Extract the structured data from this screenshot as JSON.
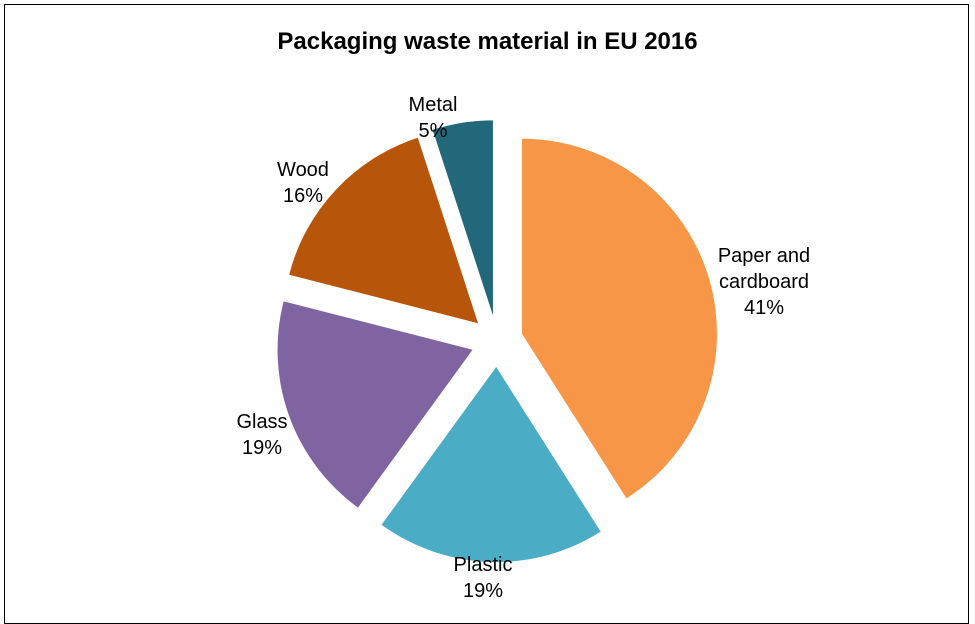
{
  "chart_data": {
    "type": "pie",
    "title": "Packaging waste material in EU 2016",
    "slices": [
      {
        "label": [
          "Paper and",
          "cardboard"
        ],
        "percent_label": "41%",
        "value": 41,
        "color": "#F79646"
      },
      {
        "label": [
          "Plastic"
        ],
        "percent_label": "19%",
        "value": 19,
        "color": "#4BACC6"
      },
      {
        "label": [
          "Glass"
        ],
        "percent_label": "19%",
        "value": 19,
        "color": "#8064A2"
      },
      {
        "label": [
          "Wood"
        ],
        "percent_label": "16%",
        "value": 16,
        "color": "#B7560A"
      },
      {
        "label": [
          "Metal"
        ],
        "percent_label": "5%",
        "value": 5,
        "color": "#23677A"
      }
    ],
    "exploded": true
  }
}
